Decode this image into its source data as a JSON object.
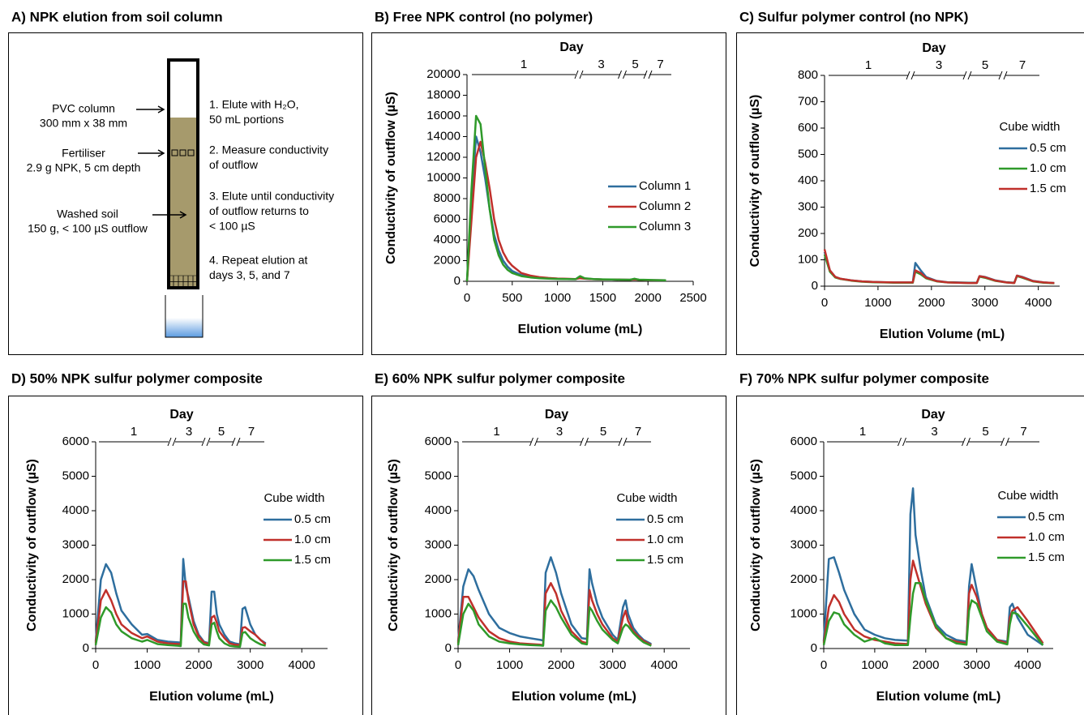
{
  "diagram": {
    "title": "A) NPK elution from soil column",
    "labels": [
      [
        "PVC column",
        "300 mm x 38 mm"
      ],
      [
        "Fertiliser",
        "2.9 g NPK, 5 cm depth"
      ],
      [
        "Washed soil",
        "150 g, < 100 µS outflow"
      ]
    ],
    "steps": [
      [
        "1. Elute with H₂O,",
        "50 mL portions"
      ],
      [
        "2. Measure conductivity",
        "of outflow"
      ],
      [
        "3. Elute until conductivity",
        "of outflow returns to",
        "< 100 µS"
      ],
      [
        "4. Repeat elution at",
        "days 3, 5, and 7"
      ]
    ]
  },
  "chart_data": [
    {
      "type": "line",
      "title": "B) Free NPK control (no polymer)",
      "xlabel": "Elution volume (mL)",
      "ylabel": "Conductivity of outflow (µS)",
      "day_label": "Day",
      "days": [
        1,
        3,
        5,
        7
      ],
      "legend": "right",
      "x": [
        0,
        50,
        100,
        150,
        200,
        250,
        300,
        350,
        400,
        450,
        500,
        600,
        700,
        800,
        900,
        1000,
        1100,
        1200,
        1250,
        1300,
        1400,
        1500,
        1600,
        1700,
        1800,
        1850,
        1900,
        2000,
        2100,
        2200
      ],
      "series": [
        {
          "name": "Column 1",
          "color": "#2e6e9e",
          "values": [
            0,
            8000,
            14000,
            12500,
            10000,
            7000,
            4500,
            3000,
            2000,
            1400,
            1000,
            600,
            450,
            350,
            300,
            250,
            220,
            200,
            350,
            250,
            200,
            180,
            170,
            160,
            150,
            200,
            150,
            120,
            110,
            100
          ]
        },
        {
          "name": "Column 2",
          "color": "#c0302b",
          "values": [
            0,
            6000,
            12000,
            13500,
            11500,
            9000,
            6000,
            4000,
            2800,
            2000,
            1500,
            800,
            550,
            400,
            320,
            270,
            240,
            220,
            300,
            250,
            200,
            180,
            170,
            160,
            150,
            180,
            150,
            120,
            110,
            100
          ]
        },
        {
          "name": "Column 3",
          "color": "#2f9a2a",
          "values": [
            0,
            9000,
            16000,
            15200,
            11000,
            7000,
            4000,
            2500,
            1600,
            1100,
            800,
            500,
            380,
            300,
            260,
            230,
            210,
            200,
            500,
            300,
            220,
            190,
            170,
            160,
            150,
            250,
            160,
            130,
            110,
            100
          ]
        }
      ],
      "xlim": [
        0,
        2500
      ],
      "xticks": [
        0,
        500,
        1000,
        1500,
        2000,
        2500
      ],
      "ylim": [
        0,
        20000
      ],
      "yticks": [
        0,
        2000,
        4000,
        6000,
        8000,
        10000,
        12000,
        14000,
        16000,
        18000,
        20000
      ]
    },
    {
      "type": "line",
      "title": "C) Sulfur polymer control (no NPK)",
      "xlabel": "Elution Volume (mL)",
      "ylabel": "Conductivity of outflow (µS)",
      "day_label": "Day",
      "days": [
        1,
        3,
        5,
        7
      ],
      "legend": "right",
      "legend_title": "Cube width",
      "x": [
        0,
        100,
        200,
        300,
        500,
        700,
        900,
        1100,
        1300,
        1500,
        1650,
        1700,
        1800,
        1900,
        2100,
        2300,
        2500,
        2700,
        2850,
        2900,
        3000,
        3200,
        3400,
        3550,
        3600,
        3700,
        3900,
        4100,
        4300
      ],
      "series": [
        {
          "name": "0.5 cm",
          "color": "#2e6e9e",
          "values": [
            130,
            60,
            35,
            28,
            22,
            18,
            16,
            15,
            14,
            14,
            14,
            88,
            60,
            35,
            20,
            15,
            14,
            13,
            13,
            38,
            35,
            22,
            15,
            13,
            40,
            35,
            20,
            14,
            12
          ]
        },
        {
          "name": "1.0 cm",
          "color": "#2f9a2a",
          "values": [
            120,
            55,
            33,
            27,
            21,
            17,
            15,
            14,
            13,
            13,
            13,
            55,
            45,
            30,
            18,
            14,
            13,
            12,
            12,
            36,
            32,
            20,
            14,
            12,
            38,
            32,
            18,
            13,
            11
          ]
        },
        {
          "name": "1.5 cm",
          "color": "#c0302b",
          "values": [
            140,
            60,
            35,
            28,
            22,
            18,
            16,
            15,
            14,
            14,
            14,
            60,
            50,
            32,
            19,
            14,
            13,
            12,
            12,
            38,
            34,
            21,
            14,
            12,
            40,
            34,
            19,
            14,
            12
          ]
        }
      ],
      "xlim": [
        0,
        4400
      ],
      "xticks": [
        0,
        1000,
        2000,
        3000,
        4000
      ],
      "ylim": [
        0,
        800
      ],
      "yticks": [
        0,
        100,
        200,
        300,
        400,
        500,
        600,
        700,
        800
      ]
    },
    {
      "type": "line",
      "title": "D) 50% NPK sulfur polymer composite",
      "xlabel": "Elution volume (mL)",
      "ylabel": "Conductivity of outflow (µS)",
      "day_label": "Day",
      "days": [
        1,
        3,
        5,
        7
      ],
      "legend": "right",
      "legend_title": "Cube width",
      "x": [
        0,
        100,
        200,
        300,
        400,
        500,
        700,
        900,
        1000,
        1200,
        1400,
        1600,
        1650,
        1700,
        1750,
        1800,
        1900,
        2000,
        2100,
        2200,
        2250,
        2300,
        2350,
        2400,
        2500,
        2600,
        2700,
        2800,
        2850,
        2900,
        3000,
        3100,
        3200,
        3300
      ],
      "series": [
        {
          "name": "0.5 cm",
          "color": "#2e6e9e",
          "values": [
            200,
            2000,
            2450,
            2200,
            1600,
            1100,
            700,
            400,
            420,
            250,
            200,
            180,
            170,
            2600,
            1800,
            1500,
            800,
            400,
            200,
            150,
            1650,
            1650,
            1000,
            700,
            400,
            200,
            150,
            120,
            1150,
            1200,
            700,
            400,
            250,
            150
          ]
        },
        {
          "name": "1.0 cm",
          "color": "#c0302b",
          "values": [
            150,
            1400,
            1700,
            1400,
            1000,
            700,
            450,
            300,
            350,
            200,
            150,
            130,
            120,
            1950,
            1950,
            1400,
            700,
            350,
            180,
            130,
            900,
            950,
            750,
            500,
            300,
            150,
            110,
            100,
            600,
            620,
            500,
            400,
            250,
            120
          ]
        },
        {
          "name": "1.5 cm",
          "color": "#2f9a2a",
          "values": [
            100,
            900,
            1200,
            1050,
            700,
            500,
            300,
            200,
            250,
            130,
            100,
            80,
            70,
            1300,
            1300,
            900,
            500,
            250,
            120,
            90,
            700,
            750,
            500,
            300,
            150,
            80,
            60,
            50,
            450,
            480,
            300,
            200,
            120,
            80
          ]
        }
      ],
      "xlim": [
        0,
        4500
      ],
      "xticks": [
        0,
        1000,
        2000,
        3000,
        4000
      ],
      "ylim": [
        0,
        6000
      ],
      "yticks": [
        0,
        1000,
        2000,
        3000,
        4000,
        5000,
        6000
      ]
    },
    {
      "type": "line",
      "title": "E) 60% NPK sulfur polymer composite",
      "xlabel": "Elution volume (mL)",
      "ylabel": "Conductivity of outflow (µS)",
      "day_label": "Day",
      "days": [
        1,
        3,
        5,
        7
      ],
      "legend": "right",
      "legend_title": "Cube width",
      "x": [
        0,
        100,
        200,
        300,
        400,
        600,
        800,
        1000,
        1200,
        1400,
        1600,
        1650,
        1700,
        1800,
        1900,
        2000,
        2200,
        2400,
        2500,
        2550,
        2600,
        2700,
        2800,
        3000,
        3100,
        3200,
        3250,
        3300,
        3400,
        3500,
        3600,
        3750
      ],
      "series": [
        {
          "name": "0.5 cm",
          "color": "#2e6e9e",
          "values": [
            200,
            1800,
            2300,
            2100,
            1700,
            1000,
            600,
            450,
            350,
            300,
            250,
            230,
            2200,
            2650,
            2200,
            1600,
            700,
            300,
            280,
            2300,
            1900,
            1300,
            900,
            400,
            250,
            1200,
            1400,
            1000,
            600,
            400,
            250,
            130
          ]
        },
        {
          "name": "1.0 cm",
          "color": "#c0302b",
          "values": [
            150,
            1500,
            1500,
            1200,
            900,
            500,
            300,
            200,
            150,
            130,
            110,
            100,
            1600,
            1900,
            1600,
            1100,
            500,
            200,
            150,
            1700,
            1400,
            1000,
            700,
            300,
            200,
            900,
            1100,
            800,
            500,
            350,
            220,
            100
          ]
        },
        {
          "name": "1.5 cm",
          "color": "#2f9a2a",
          "values": [
            100,
            1000,
            1300,
            1100,
            700,
            350,
            200,
            150,
            120,
            100,
            90,
            80,
            1100,
            1400,
            1200,
            900,
            400,
            150,
            120,
            1200,
            1100,
            800,
            550,
            250,
            150,
            600,
            700,
            650,
            450,
            300,
            180,
            80
          ]
        }
      ],
      "xlim": [
        0,
        4500
      ],
      "xticks": [
        0,
        1000,
        2000,
        3000,
        4000
      ],
      "ylim": [
        0,
        6000
      ],
      "yticks": [
        0,
        1000,
        2000,
        3000,
        4000,
        5000,
        6000
      ]
    },
    {
      "type": "line",
      "title": "F) 70% NPK sulfur polymer composite",
      "xlabel": "Elution volume (mL)",
      "ylabel": "Conductivity of outflow (µS)",
      "day_label": "Day",
      "days": [
        1,
        3,
        5,
        7
      ],
      "legend": "right",
      "legend_title": "Cube width",
      "x": [
        0,
        100,
        200,
        300,
        400,
        600,
        800,
        1000,
        1200,
        1400,
        1650,
        1700,
        1750,
        1800,
        1900,
        2000,
        2200,
        2400,
        2600,
        2800,
        2850,
        2900,
        3000,
        3100,
        3200,
        3400,
        3600,
        3650,
        3700,
        3800,
        4000,
        4300
      ],
      "series": [
        {
          "name": "0.5 cm",
          "color": "#2e6e9e",
          "values": [
            200,
            2600,
            2650,
            2200,
            1700,
            1000,
            550,
            400,
            300,
            250,
            230,
            3900,
            4650,
            3300,
            2300,
            1500,
            700,
            400,
            250,
            200,
            1800,
            2450,
            1700,
            1000,
            600,
            250,
            200,
            1200,
            1300,
            900,
            400,
            100
          ]
        },
        {
          "name": "1.0 cm",
          "color": "#c0302b",
          "values": [
            150,
            1200,
            1550,
            1350,
            1000,
            550,
            350,
            250,
            200,
            150,
            130,
            2000,
            2550,
            2300,
            1800,
            1300,
            600,
            300,
            200,
            150,
            1600,
            1850,
            1500,
            1000,
            600,
            250,
            150,
            900,
            1100,
            1200,
            800,
            150
          ]
        },
        {
          "name": "1.5 cm",
          "color": "#2f9a2a",
          "values": [
            100,
            800,
            1050,
            1000,
            700,
            400,
            200,
            300,
            150,
            100,
            100,
            900,
            1600,
            1900,
            1900,
            1400,
            650,
            300,
            150,
            110,
            1100,
            1400,
            1300,
            900,
            500,
            200,
            120,
            700,
            1050,
            1000,
            650,
            100
          ]
        }
      ],
      "xlim": [
        0,
        4500
      ],
      "xticks": [
        0,
        1000,
        2000,
        3000,
        4000
      ],
      "ylim": [
        0,
        6000
      ],
      "yticks": [
        0,
        1000,
        2000,
        3000,
        4000,
        5000,
        6000
      ]
    }
  ]
}
